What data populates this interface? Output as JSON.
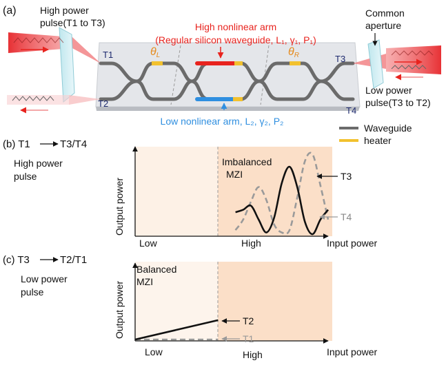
{
  "panel_a": {
    "label": "(a)",
    "high_power_pulse": [
      "High power",
      "pulse(T1 to T3)"
    ],
    "high_arm": [
      "High nonlinear arm",
      "(Regular silicon waveguide, L₁, γ₁, P₁)"
    ],
    "low_arm": "Low nonlinear arm, L₂, γ₂, P₂",
    "common_aperture": [
      "Common",
      "aperture"
    ],
    "low_power_pulse": [
      "Low power",
      "pulse(T3  to T2)"
    ],
    "ports": {
      "t1": "T1",
      "t2": "T2",
      "t3": "T3",
      "t4": "T4"
    },
    "theta_left": "θL",
    "theta_right": "θR",
    "legend": {
      "waveguide": "Waveguide",
      "heater": "heater"
    },
    "colors": {
      "waveguide": "#6b6b6b",
      "heater": "#f2c12e",
      "high_arm": "#e8231e",
      "low_arm": "#2f8fe0",
      "chip": "#e4e6ea",
      "beam": "#e6262a"
    }
  },
  "panel_b": {
    "label": "(b) T1",
    "label_targets": "T3/T4",
    "pulse_text": [
      "High power",
      "pulse"
    ],
    "region_text": [
      "Imbalanced",
      "MZI"
    ]
  },
  "panel_c": {
    "label": "(c) T3",
    "label_targets": "T2/T1",
    "pulse_text": [
      "Low power",
      "pulse"
    ],
    "region_text": [
      "Balanced",
      "MZI"
    ]
  },
  "chart_data": [
    {
      "type": "line",
      "panel": "b",
      "xlabel": "Input power",
      "ylabel": "Output power",
      "x_tick_labels": [
        "Low",
        "High"
      ],
      "shading": "light orange background, darker orange in the High region (imbalanced MZI)",
      "series": [
        {
          "name": "T3",
          "style": "solid black",
          "x": [
            0.52,
            0.56,
            0.6,
            0.64,
            0.68,
            0.72,
            0.76,
            0.8,
            0.84,
            0.88,
            0.92,
            0.96,
            1.0
          ],
          "y": [
            0.27,
            0.3,
            0.35,
            0.18,
            0.02,
            0.2,
            0.63,
            0.83,
            0.58,
            0.15,
            0.0,
            0.18,
            0.3
          ]
        },
        {
          "name": "T4",
          "style": "dashed gray",
          "x": [
            0.52,
            0.56,
            0.6,
            0.64,
            0.68,
            0.72,
            0.76,
            0.8,
            0.84,
            0.88,
            0.92,
            0.96,
            1.0
          ],
          "y": [
            0.05,
            0.18,
            0.4,
            0.58,
            0.42,
            0.12,
            0.02,
            0.05,
            0.45,
            0.9,
            0.98,
            0.6,
            0.18
          ]
        }
      ]
    },
    {
      "type": "line",
      "panel": "c",
      "xlabel": "Input power",
      "ylabel": "Output power",
      "x_tick_labels": [
        "Low",
        "High"
      ],
      "shading": "very light orange in the Low region, orange in the High region (balanced MZI)",
      "series": [
        {
          "name": "T2",
          "style": "solid black",
          "x": [
            0.0,
            0.43
          ],
          "y": [
            0.0,
            0.26
          ]
        },
        {
          "name": "T1",
          "style": "dashed gray",
          "x": [
            0.0,
            0.43
          ],
          "y": [
            0.0,
            0.0
          ]
        }
      ]
    }
  ]
}
